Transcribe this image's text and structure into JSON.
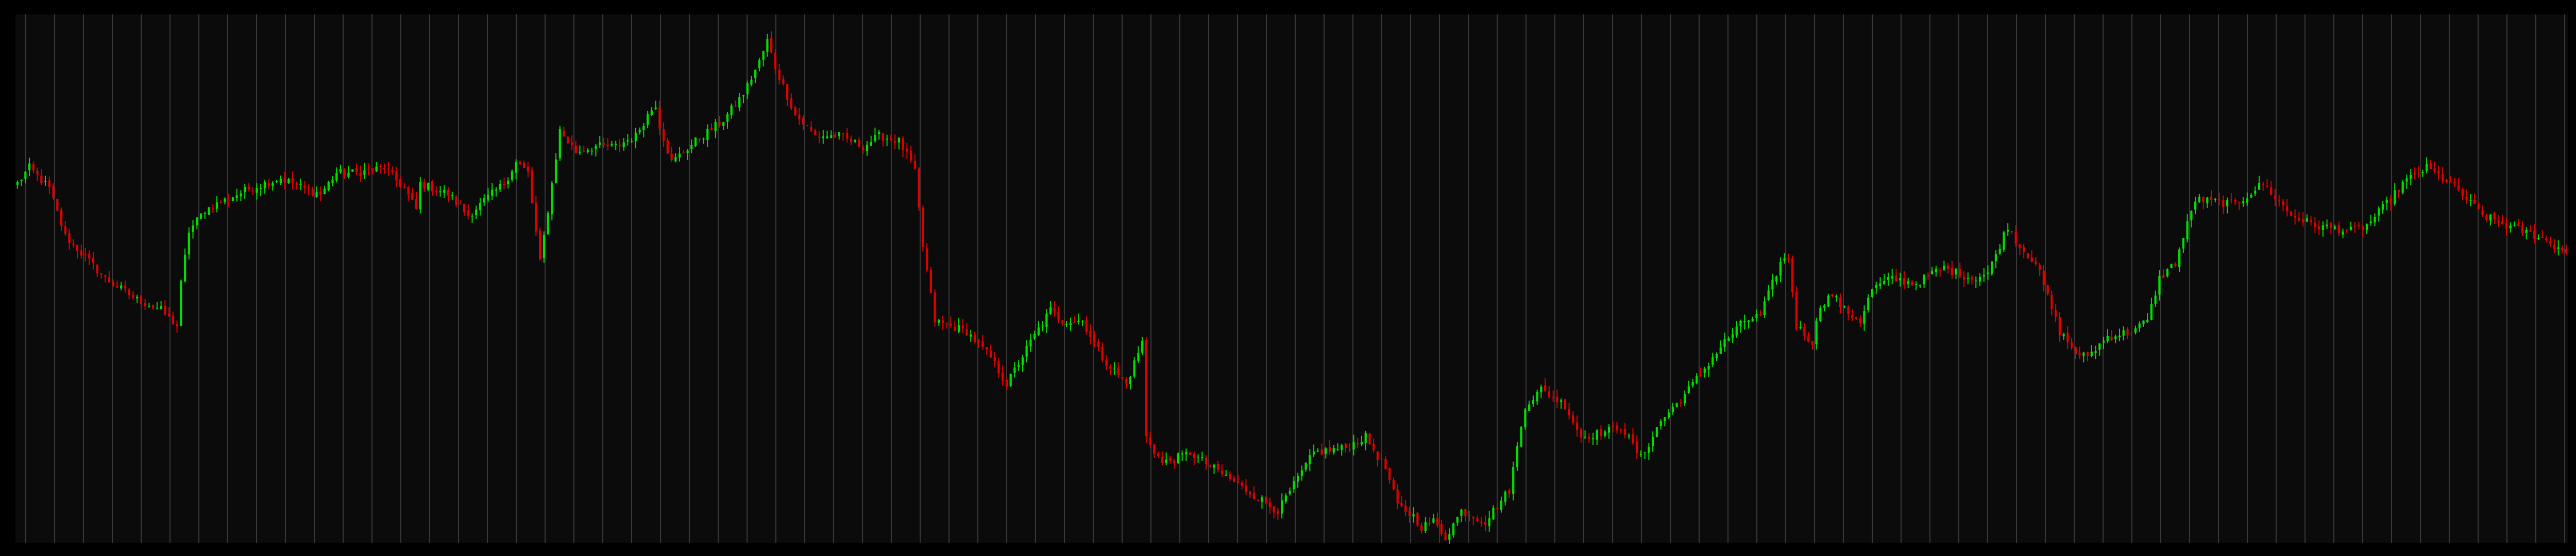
{
  "chart_data": {
    "type": "candlestick",
    "title": "",
    "xlabel": "",
    "ylabel": "",
    "x_axis_labels": "none",
    "y_axis_labels": "none",
    "legend": "none",
    "grid": "vertical-lines",
    "ylim": [
      0,
      100
    ],
    "candle_count": 640,
    "colors": {
      "background": "#000000",
      "plot_background": "#0b0b0b",
      "grid": "#3a3a3a",
      "up": "#00e000",
      "down": "#e00000"
    },
    "close_path": [
      [
        0,
        68
      ],
      [
        3,
        71
      ],
      [
        8,
        67
      ],
      [
        12,
        58
      ],
      [
        22,
        50
      ],
      [
        30,
        46
      ],
      [
        36,
        44
      ],
      [
        40,
        41
      ],
      [
        41,
        49
      ],
      [
        43,
        59
      ],
      [
        47,
        63
      ],
      [
        58,
        67
      ],
      [
        66,
        69
      ],
      [
        72,
        67
      ],
      [
        76,
        66
      ],
      [
        80,
        70
      ],
      [
        85,
        70
      ],
      [
        92,
        71
      ],
      [
        97,
        67
      ],
      [
        100,
        63
      ],
      [
        101,
        68
      ],
      [
        108,
        66
      ],
      [
        113,
        62
      ],
      [
        116,
        64
      ],
      [
        122,
        68
      ],
      [
        125,
        72
      ],
      [
        128,
        70
      ],
      [
        131,
        53
      ],
      [
        136,
        78
      ],
      [
        140,
        74
      ],
      [
        145,
        75
      ],
      [
        150,
        75
      ],
      [
        155,
        77
      ],
      [
        158,
        81
      ],
      [
        160,
        83
      ],
      [
        161,
        79
      ],
      [
        164,
        72
      ],
      [
        170,
        76
      ],
      [
        177,
        80
      ],
      [
        182,
        85
      ],
      [
        186,
        91
      ],
      [
        188,
        95
      ],
      [
        190,
        90
      ],
      [
        195,
        81
      ],
      [
        200,
        77
      ],
      [
        206,
        77
      ],
      [
        212,
        75
      ],
      [
        216,
        77
      ],
      [
        221,
        76
      ],
      [
        224,
        72
      ],
      [
        225,
        70
      ],
      [
        227,
        56
      ],
      [
        230,
        42
      ],
      [
        234,
        41
      ],
      [
        238,
        40
      ],
      [
        244,
        35
      ],
      [
        248,
        30
      ],
      [
        254,
        38
      ],
      [
        259,
        44
      ],
      [
        262,
        42
      ],
      [
        267,
        42
      ],
      [
        272,
        35
      ],
      [
        278,
        30
      ],
      [
        282,
        38
      ],
      [
        283,
        20
      ],
      [
        287,
        15
      ],
      [
        294,
        17
      ],
      [
        302,
        13
      ],
      [
        308,
        10
      ],
      [
        316,
        6
      ],
      [
        325,
        17
      ],
      [
        333,
        18
      ],
      [
        338,
        20
      ],
      [
        343,
        14
      ],
      [
        346,
        7
      ],
      [
        350,
        5
      ],
      [
        352,
        3
      ],
      [
        355,
        4
      ],
      [
        358,
        1
      ],
      [
        362,
        6
      ],
      [
        368,
        4
      ],
      [
        374,
        10
      ],
      [
        378,
        26
      ],
      [
        382,
        29
      ],
      [
        388,
        26
      ],
      [
        392,
        20
      ],
      [
        398,
        21
      ],
      [
        402,
        22
      ],
      [
        407,
        16
      ],
      [
        412,
        23
      ],
      [
        418,
        28
      ],
      [
        422,
        32
      ],
      [
        428,
        38
      ],
      [
        433,
        42
      ],
      [
        437,
        43
      ],
      [
        442,
        53
      ],
      [
        444,
        54
      ],
      [
        446,
        41
      ],
      [
        450,
        38
      ],
      [
        452,
        45
      ],
      [
        455,
        47
      ],
      [
        458,
        44
      ],
      [
        462,
        42
      ],
      [
        465,
        48
      ],
      [
        470,
        50
      ],
      [
        476,
        49
      ],
      [
        480,
        51
      ],
      [
        483,
        52
      ],
      [
        490,
        50
      ],
      [
        494,
        51
      ],
      [
        499,
        60
      ],
      [
        502,
        56
      ],
      [
        506,
        53
      ],
      [
        512,
        40
      ],
      [
        517,
        35
      ],
      [
        520,
        36
      ],
      [
        524,
        39
      ],
      [
        530,
        40
      ],
      [
        534,
        42
      ],
      [
        537,
        50
      ],
      [
        541,
        53
      ],
      [
        546,
        65
      ],
      [
        556,
        64
      ],
      [
        563,
        68
      ],
      [
        570,
        62
      ],
      [
        576,
        60
      ],
      [
        585,
        59
      ],
      [
        589,
        60
      ],
      [
        595,
        65
      ],
      [
        598,
        68
      ],
      [
        604,
        71
      ],
      [
        610,
        68
      ],
      [
        618,
        62
      ],
      [
        624,
        60
      ],
      [
        632,
        58
      ],
      [
        639,
        55
      ]
    ]
  }
}
